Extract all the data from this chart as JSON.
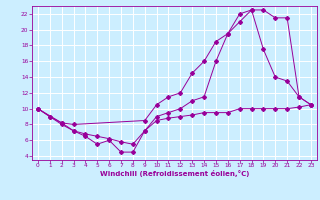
{
  "bg_color": "#cceeff",
  "grid_color": "#ffffff",
  "line_color": "#990099",
  "xlabel": "Windchill (Refroidissement éolien,°C)",
  "xlim": [
    -0.5,
    23.5
  ],
  "ylim": [
    3.5,
    23
  ],
  "yticks": [
    4,
    6,
    8,
    10,
    12,
    14,
    16,
    18,
    20,
    22
  ],
  "xticks": [
    0,
    1,
    2,
    3,
    4,
    5,
    6,
    7,
    8,
    9,
    10,
    11,
    12,
    13,
    14,
    15,
    16,
    17,
    18,
    19,
    20,
    21,
    22,
    23
  ],
  "line1_x": [
    0,
    1,
    2,
    3,
    4,
    5,
    6,
    7,
    8,
    9,
    10,
    11,
    12,
    13,
    14,
    15,
    16,
    17,
    18,
    19,
    20,
    21,
    22,
    23
  ],
  "line1_y": [
    10,
    9,
    8,
    7.2,
    6.8,
    6.5,
    6.2,
    5.8,
    5.5,
    7.2,
    9,
    9.5,
    10,
    11,
    11.5,
    16,
    19.5,
    21,
    22.5,
    22.5,
    21.5,
    21.5,
    11.5,
    10.5
  ],
  "line2_x": [
    0,
    1,
    2,
    3,
    4,
    5,
    6,
    7,
    8,
    9,
    10,
    11,
    12,
    13,
    14,
    15,
    16,
    17,
    18,
    19,
    20,
    21,
    22,
    23
  ],
  "line2_y": [
    10,
    9,
    8.2,
    7.2,
    6.5,
    5.5,
    6.0,
    4.5,
    4.5,
    7.2,
    8.5,
    8.8,
    9.0,
    9.2,
    9.5,
    9.5,
    9.5,
    10,
    10,
    10,
    10,
    10,
    10.2,
    10.5
  ],
  "line3_x": [
    0,
    2,
    3,
    9,
    10,
    11,
    12,
    13,
    14,
    15,
    16,
    17,
    18,
    19,
    20,
    21,
    22,
    23
  ],
  "line3_y": [
    10,
    8.2,
    8,
    8.5,
    10.5,
    11.5,
    12,
    14.5,
    16,
    18.5,
    19.5,
    22,
    22.5,
    17.5,
    14,
    13.5,
    11.5,
    10.5
  ]
}
